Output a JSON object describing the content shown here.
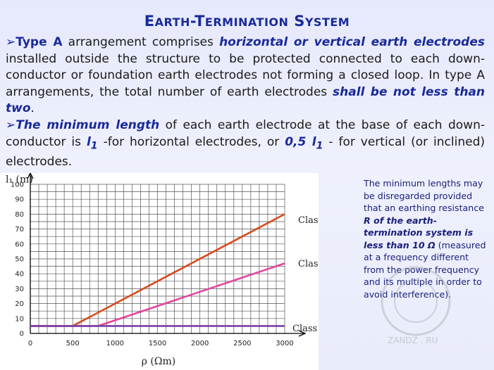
{
  "title": {
    "first": "E",
    "first_rest": "ARTH",
    "dash": "-",
    "second": "T",
    "second_rest": "ERMINATION",
    "third": "S",
    "third_rest": "YSTEM"
  },
  "paragraph1": {
    "arrow": "➢",
    "lead": "Type A",
    "t1": " arrangement comprises ",
    "em1": "horizontal or vertical earth electrodes",
    "t2": " installed outside the structure to be protected connected to each down-conductor or foundation earth electrodes not forming a closed loop. In type A arrangements, the total number of earth electrodes ",
    "em2": "shall be not less than two",
    "t3": "."
  },
  "paragraph2": {
    "arrow": "➢",
    "em1": "The minimum length",
    "t1": " of each earth electrode at the base of each down-conductor is ",
    "l1a": "l",
    "l1a_sub": "1",
    "t2": " -for horizontal electrodes, or ",
    "coef": "0,5 l",
    "coef_sub": "1",
    "t3": " - for vertical (or inclined) electrodes."
  },
  "note": {
    "t1": "The minimum lengths may be disregarded provided that an earthing resistance ",
    "em": "R of the earth-termination system is less than 10 Ω",
    "t2": " (measured at a frequency different from the power frequency and its multiple in order to avoid interference)."
  },
  "watermark": {
    "text": "ZANDZ . RU"
  },
  "chart_data": {
    "type": "line",
    "title": "",
    "xlabel": "ρ (Ωm)",
    "ylabel": "l₁ (m)",
    "xlim": [
      0,
      3000
    ],
    "ylim": [
      0,
      100
    ],
    "xticks": [
      0,
      500,
      1000,
      1500,
      2000,
      2500,
      3000
    ],
    "yticks": [
      0,
      10,
      20,
      30,
      40,
      50,
      60,
      70,
      80,
      90,
      100
    ],
    "grid": true,
    "series": [
      {
        "name": "Class I",
        "color": "#d84a1b",
        "x": [
          0,
          500,
          3000
        ],
        "y": [
          5,
          5,
          80
        ]
      },
      {
        "name": "Class II",
        "color": "#e3449e",
        "x": [
          0,
          800,
          3000
        ],
        "y": [
          5,
          5,
          47
        ]
      },
      {
        "name": "Class III or IV",
        "color": "#7b3fa8",
        "x": [
          0,
          3000
        ],
        "y": [
          5,
          5
        ]
      }
    ]
  }
}
